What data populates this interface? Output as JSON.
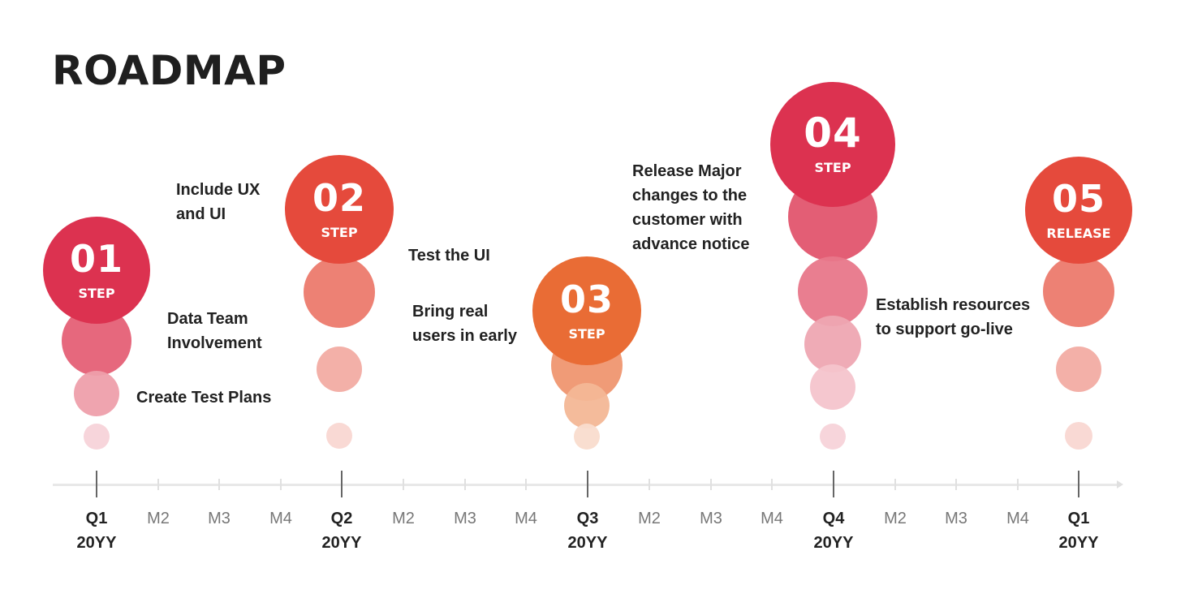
{
  "title": "ROADMAP",
  "milestones": [
    {
      "number": "01",
      "label": "STEP",
      "color": "#dc3250",
      "notes": [
        "Data Team\nInvolvement",
        "Create Test Plans"
      ]
    },
    {
      "number": "02",
      "label": "STEP",
      "color": "#e54a3c",
      "notes": [
        "Include UX\nand UI",
        "Test the UI"
      ]
    },
    {
      "number": "03",
      "label": "STEP",
      "color": "#e96c35",
      "notes": [
        "Bring real\nusers in early"
      ]
    },
    {
      "number": "04",
      "label": "STEP",
      "color": "#dc3250",
      "notes": [
        "Release Major\nchanges to the\ncustomer with\nadvance notice",
        "Establish resources\nto support go-live"
      ]
    },
    {
      "number": "05",
      "label": "RELEASE",
      "color": "#e54a3c",
      "notes": []
    }
  ],
  "timeline": {
    "quarters": [
      {
        "q": "Q1",
        "year": "20YY"
      },
      {
        "q": "Q2",
        "year": "20YY"
      },
      {
        "q": "Q3",
        "year": "20YY"
      },
      {
        "q": "Q4",
        "year": "20YY"
      },
      {
        "q": "Q1",
        "year": "20YY"
      }
    ],
    "months": [
      "M2",
      "M3",
      "M4"
    ]
  }
}
